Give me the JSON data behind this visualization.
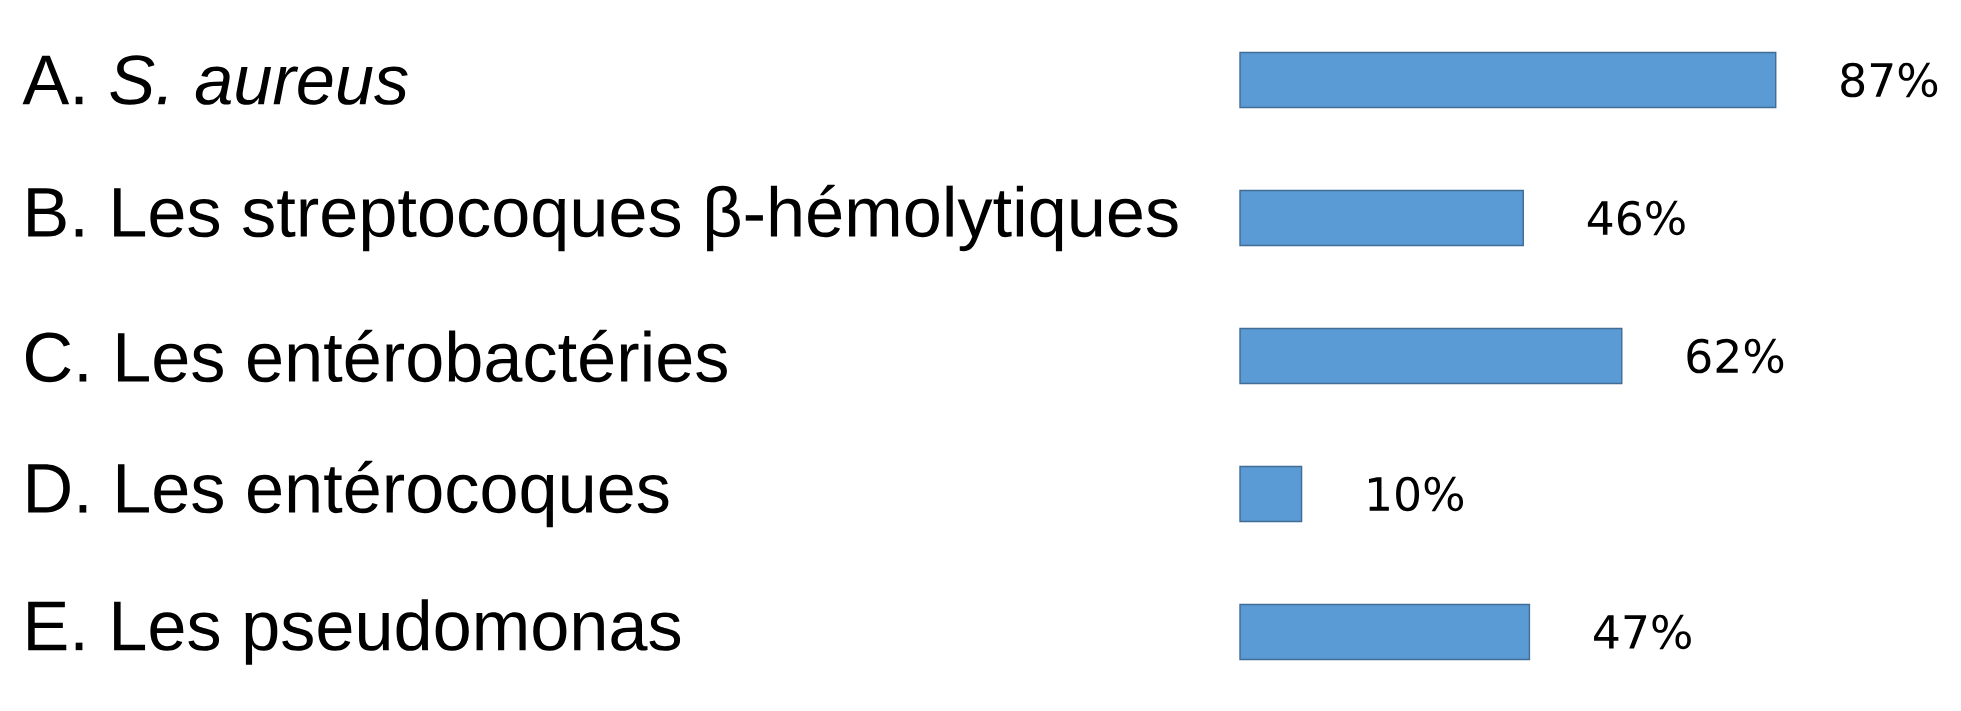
{
  "chart_data": {
    "type": "bar",
    "orientation": "horizontal",
    "categories": [
      "A.  *S. aureus*",
      "B.  Les streptocoques β-hémolytiques",
      "C.  Les entérobactéries",
      "D.  Les entérocoques",
      "E.  Les pseudomonas"
    ],
    "values": [
      87,
      46,
      62,
      10,
      47
    ],
    "value_labels": [
      "87%",
      "46%",
      "62%",
      "10%",
      "47%"
    ],
    "color": "#5b9bd5"
  }
}
